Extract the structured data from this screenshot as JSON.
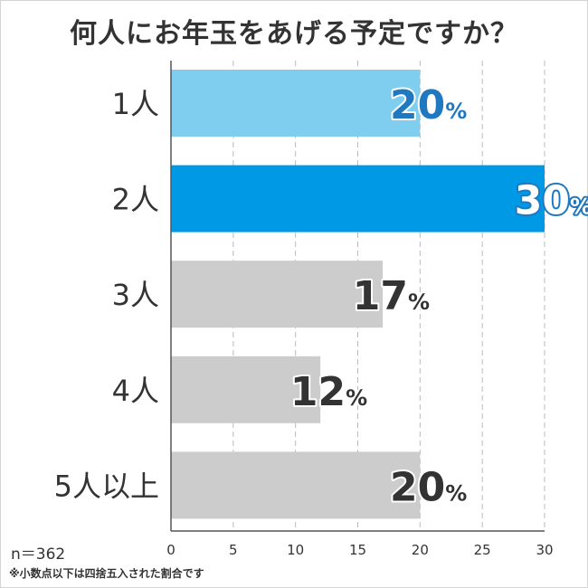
{
  "chart_data": {
    "type": "bar",
    "orientation": "horizontal",
    "title": "何人にお年玉をあげる予定ですか？",
    "categories": [
      "1人",
      "2人",
      "3人",
      "4人",
      "5人以上"
    ],
    "values": [
      20,
      30,
      17,
      12,
      20
    ],
    "value_suffix": "%",
    "bar_colors": [
      "#7fcdef",
      "#0099e6",
      "#cccccc",
      "#cccccc",
      "#cccccc"
    ],
    "label_colors": [
      "#1f78c0",
      "#ffffff",
      "#333333",
      "#333333",
      "#333333"
    ],
    "label_outline_colors": [
      "#ffffff",
      "#1f78c0",
      "#ffffff",
      "#ffffff",
      "#ffffff"
    ],
    "xlim": [
      0,
      30
    ],
    "xticks": [
      0,
      5,
      10,
      15,
      20,
      25,
      30
    ],
    "grid": true,
    "legend": "none"
  },
  "sample_size": "n＝362",
  "footnote": "※小数点以下は四捨五入された割合です"
}
